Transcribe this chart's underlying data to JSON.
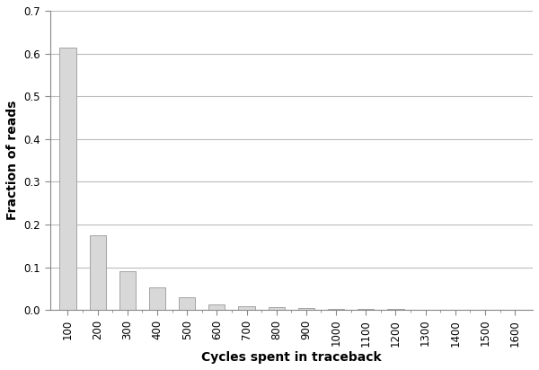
{
  "categories": [
    100,
    200,
    300,
    400,
    500,
    600,
    700,
    800,
    900,
    1000,
    1100,
    1200,
    1300,
    1400,
    1500,
    1600
  ],
  "values": [
    0.614,
    0.174,
    0.092,
    0.054,
    0.03,
    0.013,
    0.01,
    0.008,
    0.005,
    0.003,
    0.002,
    0.002,
    0.001,
    0.001,
    0.001,
    0.001
  ],
  "bar_color": "#d8d8d8",
  "bar_edge_color": "#999999",
  "xlabel": "Cycles spent in traceback",
  "ylabel": "Fraction of reads",
  "ylim": [
    0,
    0.7
  ],
  "yticks": [
    0.0,
    0.1,
    0.2,
    0.3,
    0.4,
    0.5,
    0.6,
    0.7
  ],
  "xlabel_fontsize": 10,
  "ylabel_fontsize": 10,
  "tick_fontsize": 8.5,
  "background_color": "#ffffff",
  "grid_color": "#bbbbbb",
  "spine_color": "#888888"
}
